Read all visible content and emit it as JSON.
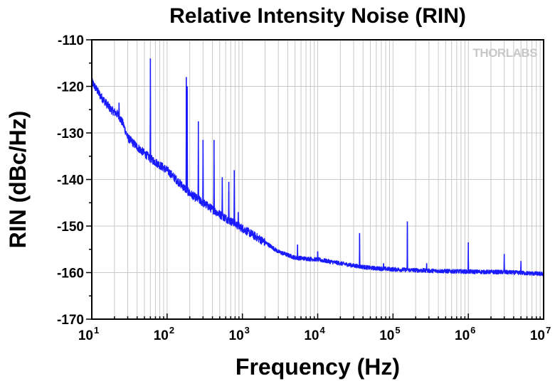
{
  "chart_data": {
    "type": "line",
    "title": "Relative Intensity Noise (RIN)",
    "xlabel": "Frequency (Hz)",
    "ylabel": "RIN (dBc/Hz)",
    "x_scale": "log",
    "xlim": [
      10,
      10000000
    ],
    "ylim": [
      -170,
      -110
    ],
    "grid": true,
    "x_tick_labels": [
      {
        "base": "10",
        "exp": "1"
      },
      {
        "base": "10",
        "exp": "2"
      },
      {
        "base": "10",
        "exp": "3"
      },
      {
        "base": "10",
        "exp": "4"
      },
      {
        "base": "10",
        "exp": "5"
      },
      {
        "base": "10",
        "exp": "6"
      },
      {
        "base": "10",
        "exp": "7"
      }
    ],
    "y_tick_labels": [
      "-110",
      "-120",
      "-130",
      "-140",
      "-150",
      "-160",
      "-170"
    ],
    "series": [
      {
        "name": "RIN",
        "color": "#1a1aff",
        "baseline": {
          "x": [
            10,
            13,
            18,
            22,
            26,
            30,
            40,
            60,
            100,
            200,
            300,
            500,
            1000,
            2000,
            3000,
            5000,
            7000,
            10000,
            20000,
            30000,
            50000,
            100000,
            300000,
            1000000,
            3000000,
            10000000
          ],
          "y": [
            -119,
            -122,
            -125,
            -126,
            -128,
            -131,
            -133,
            -135.5,
            -138,
            -143,
            -145,
            -147.5,
            -150.5,
            -153.5,
            -155.5,
            -156.8,
            -157,
            -157.2,
            -158,
            -158.5,
            -159,
            -159.3,
            -159.6,
            -159.8,
            -159.9,
            -160.3
          ]
        },
        "spikes": {
          "x": [
            23,
            60,
            180,
            185,
            260,
            300,
            420,
            540,
            660,
            780,
            880,
            5400,
            10000,
            36000,
            75000,
            155000,
            280000,
            1000000,
            3000000,
            5000000
          ],
          "y": [
            -123.5,
            -114,
            -118,
            -120,
            -127.5,
            -131.5,
            -131.5,
            -139.5,
            -140.5,
            -138,
            -147,
            -154,
            -155.5,
            -151.5,
            -158,
            -149,
            -158,
            -153.5,
            -156,
            -157.5
          ]
        }
      }
    ]
  },
  "logo": {
    "text": "THORLABS"
  }
}
